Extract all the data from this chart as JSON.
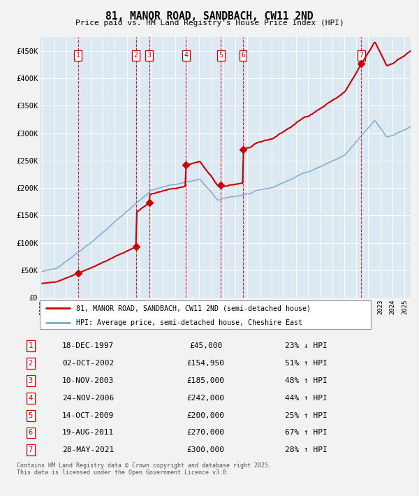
{
  "title": "81, MANOR ROAD, SANDBACH, CW11 2ND",
  "subtitle": "Price paid vs. HM Land Registry's House Price Index (HPI)",
  "transactions": [
    {
      "num": 1,
      "date_year": 1997.96,
      "price": 45000
    },
    {
      "num": 2,
      "date_year": 2002.75,
      "price": 154950
    },
    {
      "num": 3,
      "date_year": 2003.86,
      "price": 185000
    },
    {
      "num": 4,
      "date_year": 2006.9,
      "price": 242000
    },
    {
      "num": 5,
      "date_year": 2009.79,
      "price": 200000
    },
    {
      "num": 6,
      "date_year": 2011.63,
      "price": 270000
    },
    {
      "num": 7,
      "date_year": 2021.41,
      "price": 300000
    }
  ],
  "table_rows": [
    {
      "num": 1,
      "date_str": "18-DEC-1997",
      "price_str": "£45,000",
      "hpi_str": "23% ↓ HPI"
    },
    {
      "num": 2,
      "date_str": "02-OCT-2002",
      "price_str": "£154,950",
      "hpi_str": "51% ↑ HPI"
    },
    {
      "num": 3,
      "date_str": "10-NOV-2003",
      "price_str": "£185,000",
      "hpi_str": "48% ↑ HPI"
    },
    {
      "num": 4,
      "date_str": "24-NOV-2006",
      "price_str": "£242,000",
      "hpi_str": "44% ↑ HPI"
    },
    {
      "num": 5,
      "date_str": "14-OCT-2009",
      "price_str": "£200,000",
      "hpi_str": "25% ↑ HPI"
    },
    {
      "num": 6,
      "date_str": "19-AUG-2011",
      "price_str": "£270,000",
      "hpi_str": "67% ↑ HPI"
    },
    {
      "num": 7,
      "date_str": "28-MAY-2021",
      "price_str": "£300,000",
      "hpi_str": "28% ↑ HPI"
    }
  ],
  "legend_line1": "81, MANOR ROAD, SANDBACH, CW11 2ND (semi-detached house)",
  "legend_line2": "HPI: Average price, semi-detached house, Cheshire East",
  "footer": "Contains HM Land Registry data © Crown copyright and database right 2025.\nThis data is licensed under the Open Government Licence v3.0.",
  "red_color": "#cc0000",
  "blue_color": "#7aabcf",
  "plot_bg": "#dce8f2",
  "grid_color": "#ffffff",
  "fig_bg": "#f2f2f2",
  "ylim": [
    0,
    475000
  ],
  "xlim": [
    1994.8,
    2025.5
  ],
  "yticks": [
    0,
    50000,
    100000,
    150000,
    200000,
    250000,
    300000,
    350000,
    400000,
    450000
  ],
  "ytick_labels": [
    "£0",
    "£50K",
    "£100K",
    "£150K",
    "£200K",
    "£250K",
    "£300K",
    "£350K",
    "£400K",
    "£450K"
  ]
}
